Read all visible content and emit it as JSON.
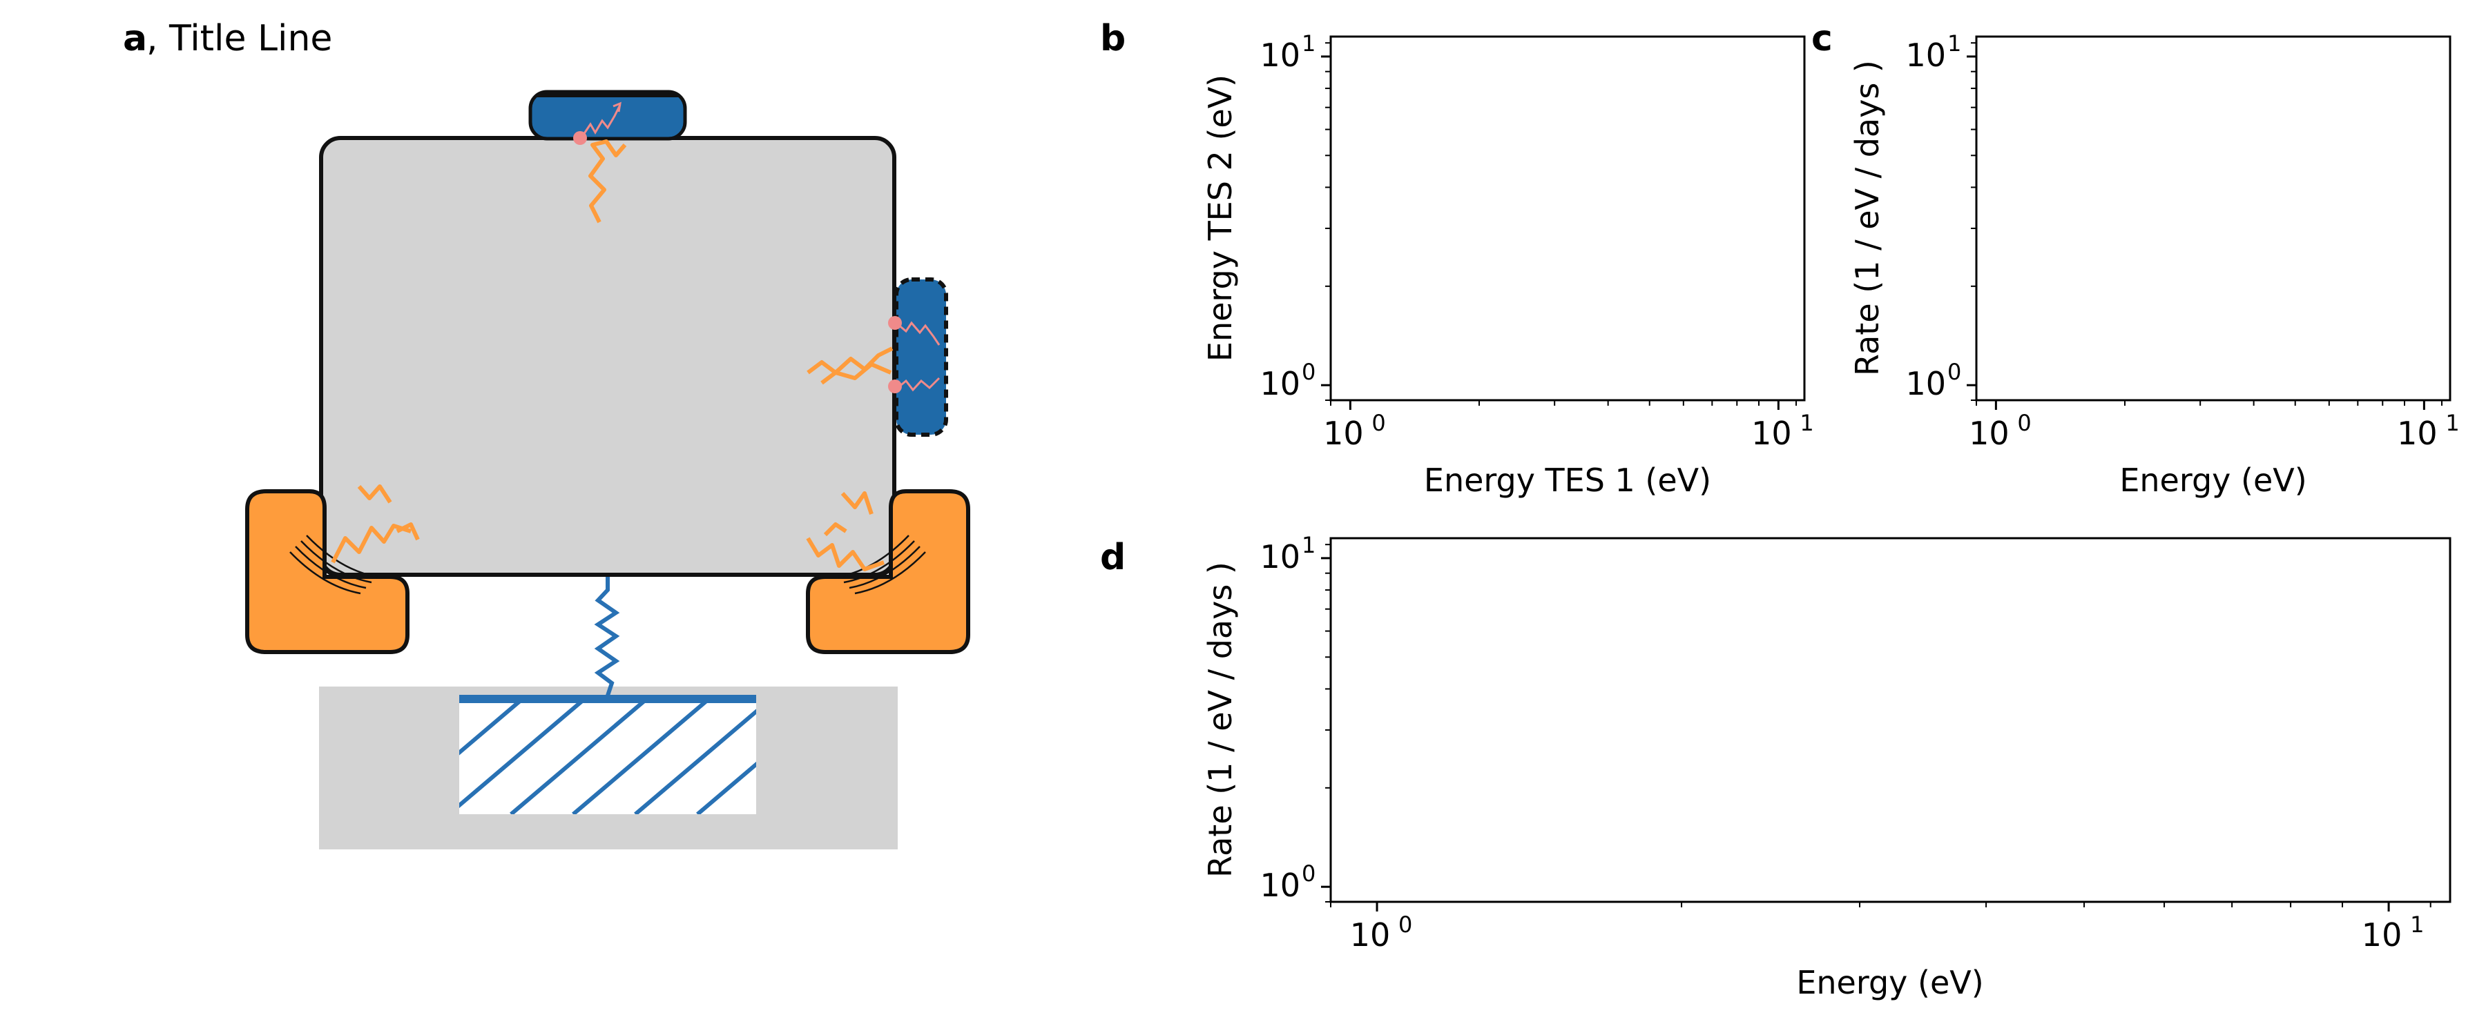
{
  "panel_a": {
    "letter": "a",
    "title": ", Title Line",
    "illustration": {
      "colors": {
        "crystal": "#d3d3d3",
        "sensor": "#1f6aa8",
        "clamp": "#fe9c3c",
        "phonon": "#fe9c3c",
        "event": "#f08a8a",
        "support": "#d3d3d3",
        "spring": "#2871b4",
        "hatch": "#2871b4"
      },
      "icons": [
        "crystal-block",
        "tes-sensor-top",
        "tes-sensor-side",
        "holding-clamp-left",
        "holding-clamp-right",
        "spring",
        "hatched-mount"
      ]
    }
  },
  "chart_data": [
    {
      "panel": "b",
      "type": "scatter",
      "series": [],
      "xlabel": "Energy TES 1 (eV)",
      "ylabel": "Energy TES 2 (eV)",
      "xlim": [
        0.9,
        11.5
      ],
      "ylim": [
        0.9,
        11.5
      ],
      "xscale": "log",
      "yscale": "log",
      "xticks": [
        {
          "base": "10",
          "exp": "0"
        },
        {
          "base": "10",
          "exp": "1"
        }
      ],
      "yticks": [
        {
          "base": "10",
          "exp": "0"
        },
        {
          "base": "10",
          "exp": "1"
        }
      ],
      "grid": false
    },
    {
      "panel": "c",
      "type": "line",
      "series": [],
      "xlabel": "Energy (eV)",
      "ylabel": "Rate (1 / eV / days )",
      "xlim": [
        0.9,
        11.5
      ],
      "ylim": [
        0.9,
        11.5
      ],
      "xscale": "log",
      "yscale": "log",
      "xticks": [
        {
          "base": "10",
          "exp": "0"
        },
        {
          "base": "10",
          "exp": "1"
        }
      ],
      "yticks": [
        {
          "base": "10",
          "exp": "0"
        },
        {
          "base": "10",
          "exp": "1"
        }
      ],
      "grid": false
    },
    {
      "panel": "d",
      "type": "line",
      "series": [],
      "xlabel": "Energy (eV)",
      "ylabel": "Rate (1 / eV / days )",
      "xlim": [
        0.9,
        11.5
      ],
      "ylim": [
        0.9,
        11.5
      ],
      "xscale": "log",
      "yscale": "log",
      "xticks": [
        {
          "base": "10",
          "exp": "0"
        },
        {
          "base": "10",
          "exp": "1"
        }
      ],
      "yticks": [
        {
          "base": "10",
          "exp": "0"
        },
        {
          "base": "10",
          "exp": "1"
        }
      ],
      "grid": false
    }
  ]
}
